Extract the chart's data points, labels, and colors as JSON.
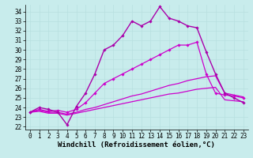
{
  "xlabel": "Windchill (Refroidissement éolien,°C)",
  "background_color": "#c8ecec",
  "grid_color": "#b8e0e0",
  "line_color_main": "#cc00cc",
  "line_color_secondary": "#9900aa",
  "x_ticks": [
    0,
    1,
    2,
    3,
    4,
    5,
    6,
    7,
    8,
    9,
    10,
    11,
    12,
    13,
    14,
    15,
    16,
    17,
    18,
    19,
    20,
    21,
    22,
    23
  ],
  "y_ticks": [
    22,
    23,
    24,
    25,
    26,
    27,
    28,
    29,
    30,
    31,
    32,
    33,
    34
  ],
  "ylim": [
    21.7,
    34.7
  ],
  "xlim": [
    -0.5,
    23.5
  ],
  "series": [
    [
      23.5,
      24.0,
      23.8,
      23.5,
      22.2,
      24.1,
      25.5,
      27.5,
      30.0,
      30.5,
      31.5,
      33.0,
      32.5,
      33.0,
      34.5,
      33.3,
      33.0,
      32.5,
      32.3,
      29.8,
      27.5,
      25.5,
      25.0,
      24.5
    ],
    [
      23.5,
      23.8,
      23.6,
      23.7,
      23.5,
      23.8,
      24.5,
      25.5,
      26.5,
      27.0,
      27.5,
      28.0,
      28.5,
      29.0,
      29.5,
      30.0,
      30.5,
      30.5,
      30.8,
      27.5,
      25.5,
      25.3,
      25.2,
      25.0
    ],
    [
      23.5,
      23.7,
      23.5,
      23.5,
      23.3,
      23.5,
      23.8,
      24.0,
      24.3,
      24.6,
      24.9,
      25.2,
      25.4,
      25.7,
      26.0,
      26.3,
      26.5,
      26.8,
      27.0,
      27.2,
      27.3,
      25.5,
      25.3,
      25.1
    ],
    [
      23.5,
      23.6,
      23.4,
      23.4,
      23.2,
      23.4,
      23.6,
      23.8,
      24.0,
      24.2,
      24.4,
      24.6,
      24.8,
      25.0,
      25.2,
      25.4,
      25.5,
      25.7,
      25.9,
      26.0,
      26.1,
      24.8,
      24.7,
      24.6
    ]
  ],
  "tickfontsize": 5.5,
  "labelfontsize": 6.5
}
